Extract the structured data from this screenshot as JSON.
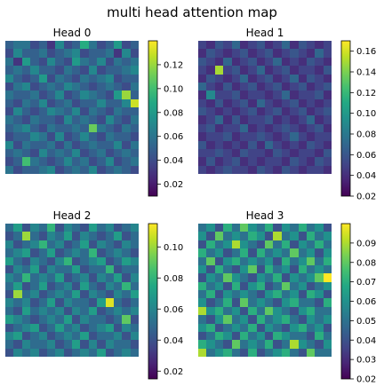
{
  "figure": {
    "title": "multi head attention map"
  },
  "chart_data": [
    {
      "type": "heatmap",
      "title": "Head 0",
      "rows": 16,
      "cols": 16,
      "colormap": "viridis",
      "color_range": [
        0.01,
        0.14
      ],
      "colorbar_ticks": [
        0.02,
        0.04,
        0.06,
        0.08,
        0.1,
        0.12
      ],
      "colorbar_tick_labels": [
        "0.02",
        "0.04",
        "0.06",
        "0.08",
        "0.10",
        "0.12"
      ],
      "values": [
        [
          0.05,
          0.06,
          0.06,
          0.04,
          0.05,
          0.03,
          0.07,
          0.04,
          0.05,
          0.09,
          0.06,
          0.04,
          0.05,
          0.08,
          0.04,
          0.05
        ],
        [
          0.04,
          0.07,
          0.05,
          0.05,
          0.06,
          0.04,
          0.05,
          0.06,
          0.07,
          0.04,
          0.05,
          0.05,
          0.06,
          0.03,
          0.07,
          0.04
        ],
        [
          0.06,
          0.03,
          0.08,
          0.05,
          0.04,
          0.07,
          0.05,
          0.04,
          0.08,
          0.06,
          0.05,
          0.07,
          0.04,
          0.06,
          0.05,
          0.06
        ],
        [
          0.05,
          0.06,
          0.05,
          0.07,
          0.05,
          0.05,
          0.04,
          0.06,
          0.05,
          0.04,
          0.07,
          0.04,
          0.05,
          0.05,
          0.06,
          0.07
        ],
        [
          0.07,
          0.05,
          0.04,
          0.05,
          0.08,
          0.04,
          0.06,
          0.05,
          0.04,
          0.06,
          0.05,
          0.06,
          0.07,
          0.04,
          0.05,
          0.05
        ],
        [
          0.04,
          0.06,
          0.07,
          0.04,
          0.05,
          0.06,
          0.05,
          0.07,
          0.06,
          0.05,
          0.04,
          0.05,
          0.06,
          0.05,
          0.04,
          0.06
        ],
        [
          0.06,
          0.05,
          0.05,
          0.06,
          0.04,
          0.05,
          0.07,
          0.04,
          0.05,
          0.07,
          0.06,
          0.05,
          0.04,
          0.08,
          0.12,
          0.05
        ],
        [
          0.05,
          0.04,
          0.06,
          0.05,
          0.07,
          0.04,
          0.05,
          0.06,
          0.04,
          0.05,
          0.05,
          0.07,
          0.05,
          0.05,
          0.07,
          0.13
        ],
        [
          0.04,
          0.07,
          0.05,
          0.04,
          0.05,
          0.07,
          0.06,
          0.05,
          0.07,
          0.04,
          0.06,
          0.05,
          0.04,
          0.06,
          0.05,
          0.05
        ],
        [
          0.06,
          0.05,
          0.04,
          0.06,
          0.05,
          0.05,
          0.04,
          0.07,
          0.05,
          0.06,
          0.05,
          0.04,
          0.07,
          0.05,
          0.04,
          0.06
        ],
        [
          0.05,
          0.06,
          0.07,
          0.05,
          0.04,
          0.06,
          0.05,
          0.05,
          0.06,
          0.05,
          0.11,
          0.06,
          0.05,
          0.04,
          0.06,
          0.05
        ],
        [
          0.04,
          0.05,
          0.05,
          0.07,
          0.06,
          0.04,
          0.07,
          0.04,
          0.05,
          0.07,
          0.05,
          0.04,
          0.06,
          0.05,
          0.05,
          0.04
        ],
        [
          0.07,
          0.04,
          0.06,
          0.05,
          0.05,
          0.06,
          0.04,
          0.06,
          0.04,
          0.05,
          0.06,
          0.05,
          0.05,
          0.07,
          0.04,
          0.06
        ],
        [
          0.05,
          0.06,
          0.05,
          0.04,
          0.07,
          0.05,
          0.06,
          0.05,
          0.07,
          0.04,
          0.05,
          0.06,
          0.04,
          0.05,
          0.06,
          0.05
        ],
        [
          0.04,
          0.05,
          0.1,
          0.06,
          0.05,
          0.04,
          0.05,
          0.07,
          0.05,
          0.06,
          0.04,
          0.05,
          0.07,
          0.04,
          0.05,
          0.06
        ],
        [
          0.06,
          0.04,
          0.05,
          0.05,
          0.06,
          0.07,
          0.04,
          0.05,
          0.06,
          0.05,
          0.07,
          0.04,
          0.05,
          0.06,
          0.05,
          0.04
        ]
      ]
    },
    {
      "type": "heatmap",
      "title": "Head 1",
      "rows": 16,
      "cols": 16,
      "colormap": "viridis",
      "color_range": [
        0.02,
        0.17
      ],
      "colorbar_ticks": [
        0.02,
        0.04,
        0.06,
        0.08,
        0.1,
        0.12,
        0.14,
        0.16
      ],
      "colorbar_tick_labels": [
        "0.02",
        "0.04",
        "0.06",
        "0.08",
        "0.10",
        "0.12",
        "0.14",
        "0.16"
      ],
      "values": [
        [
          0.05,
          0.04,
          0.06,
          0.05,
          0.07,
          0.04,
          0.05,
          0.06,
          0.04,
          0.05,
          0.07,
          0.04,
          0.06,
          0.05,
          0.04,
          0.05
        ],
        [
          0.04,
          0.06,
          0.05,
          0.04,
          0.05,
          0.06,
          0.04,
          0.05,
          0.06,
          0.04,
          0.05,
          0.06,
          0.05,
          0.04,
          0.07,
          0.05
        ],
        [
          0.06,
          0.05,
          0.04,
          0.07,
          0.04,
          0.05,
          0.06,
          0.04,
          0.05,
          0.07,
          0.04,
          0.05,
          0.04,
          0.06,
          0.05,
          0.04
        ],
        [
          0.05,
          0.04,
          0.15,
          0.05,
          0.06,
          0.04,
          0.05,
          0.07,
          0.04,
          0.05,
          0.06,
          0.04,
          0.05,
          0.05,
          0.04,
          0.06
        ],
        [
          0.04,
          0.06,
          0.05,
          0.04,
          0.05,
          0.07,
          0.04,
          0.05,
          0.06,
          0.04,
          0.05,
          0.07,
          0.04,
          0.06,
          0.05,
          0.04
        ],
        [
          0.07,
          0.05,
          0.04,
          0.06,
          0.04,
          0.05,
          0.06,
          0.04,
          0.05,
          0.06,
          0.04,
          0.05,
          0.06,
          0.04,
          0.05,
          0.06
        ],
        [
          0.04,
          0.09,
          0.05,
          0.05,
          0.06,
          0.04,
          0.05,
          0.05,
          0.04,
          0.05,
          0.07,
          0.04,
          0.05,
          0.05,
          0.06,
          0.04
        ],
        [
          0.05,
          0.04,
          0.06,
          0.04,
          0.05,
          0.06,
          0.04,
          0.07,
          0.05,
          0.04,
          0.05,
          0.06,
          0.04,
          0.05,
          0.04,
          0.05
        ],
        [
          0.06,
          0.05,
          0.04,
          0.05,
          0.04,
          0.05,
          0.06,
          0.04,
          0.05,
          0.06,
          0.04,
          0.05,
          0.06,
          0.04,
          0.05,
          0.06
        ],
        [
          0.04,
          0.05,
          0.07,
          0.04,
          0.06,
          0.04,
          0.05,
          0.05,
          0.06,
          0.04,
          0.05,
          0.04,
          0.05,
          0.07,
          0.04,
          0.05
        ],
        [
          0.05,
          0.06,
          0.04,
          0.05,
          0.05,
          0.07,
          0.04,
          0.05,
          0.04,
          0.05,
          0.06,
          0.05,
          0.04,
          0.05,
          0.06,
          0.04
        ],
        [
          0.04,
          0.05,
          0.05,
          0.06,
          0.04,
          0.05,
          0.05,
          0.06,
          0.05,
          0.04,
          0.05,
          0.07,
          0.05,
          0.04,
          0.05,
          0.05
        ],
        [
          0.06,
          0.04,
          0.05,
          0.04,
          0.05,
          0.04,
          0.06,
          0.04,
          0.07,
          0.05,
          0.04,
          0.05,
          0.04,
          0.06,
          0.05,
          0.04
        ],
        [
          0.05,
          0.05,
          0.06,
          0.05,
          0.04,
          0.06,
          0.05,
          0.05,
          0.04,
          0.06,
          0.05,
          0.04,
          0.05,
          0.05,
          0.04,
          0.06
        ],
        [
          0.04,
          0.06,
          0.04,
          0.05,
          0.06,
          0.04,
          0.05,
          0.04,
          0.05,
          0.05,
          0.04,
          0.06,
          0.05,
          0.04,
          0.06,
          0.05
        ],
        [
          0.05,
          0.04,
          0.05,
          0.06,
          0.05,
          0.05,
          0.04,
          0.06,
          0.05,
          0.04,
          0.06,
          0.05,
          0.04,
          0.05,
          0.05,
          0.04
        ]
      ]
    },
    {
      "type": "heatmap",
      "title": "Head 2",
      "rows": 16,
      "cols": 16,
      "colormap": "viridis",
      "color_range": [
        0.015,
        0.115
      ],
      "colorbar_ticks": [
        0.02,
        0.04,
        0.06,
        0.08,
        0.1
      ],
      "colorbar_tick_labels": [
        "0.02",
        "0.04",
        "0.06",
        "0.08",
        "0.10"
      ],
      "values": [
        [
          0.05,
          0.07,
          0.04,
          0.06,
          0.05,
          0.08,
          0.04,
          0.06,
          0.05,
          0.04,
          0.07,
          0.05,
          0.06,
          0.04,
          0.05,
          0.06
        ],
        [
          0.04,
          0.05,
          0.1,
          0.05,
          0.04,
          0.06,
          0.05,
          0.07,
          0.04,
          0.06,
          0.05,
          0.04,
          0.05,
          0.07,
          0.04,
          0.05
        ],
        [
          0.06,
          0.04,
          0.05,
          0.06,
          0.08,
          0.05,
          0.06,
          0.04,
          0.05,
          0.07,
          0.04,
          0.06,
          0.05,
          0.04,
          0.06,
          0.05
        ],
        [
          0.05,
          0.06,
          0.07,
          0.04,
          0.05,
          0.07,
          0.04,
          0.05,
          0.06,
          0.05,
          0.08,
          0.04,
          0.05,
          0.06,
          0.05,
          0.04
        ],
        [
          0.07,
          0.05,
          0.04,
          0.06,
          0.05,
          0.04,
          0.06,
          0.08,
          0.04,
          0.05,
          0.06,
          0.07,
          0.04,
          0.05,
          0.07,
          0.06
        ],
        [
          0.04,
          0.06,
          0.05,
          0.07,
          0.04,
          0.06,
          0.05,
          0.05,
          0.07,
          0.04,
          0.05,
          0.05,
          0.08,
          0.04,
          0.05,
          0.05
        ],
        [
          0.06,
          0.05,
          0.08,
          0.05,
          0.06,
          0.05,
          0.07,
          0.04,
          0.05,
          0.06,
          0.04,
          0.06,
          0.05,
          0.07,
          0.04,
          0.06
        ],
        [
          0.05,
          0.07,
          0.04,
          0.05,
          0.07,
          0.04,
          0.05,
          0.06,
          0.04,
          0.07,
          0.05,
          0.04,
          0.06,
          0.05,
          0.08,
          0.05
        ],
        [
          0.04,
          0.1,
          0.05,
          0.06,
          0.04,
          0.05,
          0.06,
          0.05,
          0.07,
          0.04,
          0.06,
          0.05,
          0.04,
          0.06,
          0.05,
          0.07
        ],
        [
          0.06,
          0.05,
          0.06,
          0.04,
          0.05,
          0.07,
          0.04,
          0.06,
          0.05,
          0.05,
          0.04,
          0.07,
          0.11,
          0.05,
          0.04,
          0.05
        ],
        [
          0.05,
          0.04,
          0.07,
          0.05,
          0.06,
          0.05,
          0.06,
          0.04,
          0.06,
          0.05,
          0.07,
          0.04,
          0.05,
          0.06,
          0.05,
          0.06
        ],
        [
          0.07,
          0.06,
          0.05,
          0.04,
          0.05,
          0.06,
          0.05,
          0.07,
          0.04,
          0.06,
          0.05,
          0.05,
          0.04,
          0.05,
          0.09,
          0.04
        ],
        [
          0.04,
          0.05,
          0.06,
          0.07,
          0.04,
          0.05,
          0.07,
          0.05,
          0.06,
          0.04,
          0.05,
          0.06,
          0.07,
          0.04,
          0.06,
          0.05
        ],
        [
          0.06,
          0.07,
          0.04,
          0.05,
          0.06,
          0.04,
          0.05,
          0.06,
          0.05,
          0.07,
          0.04,
          0.05,
          0.05,
          0.06,
          0.04,
          0.06
        ],
        [
          0.05,
          0.04,
          0.06,
          0.05,
          0.05,
          0.06,
          0.04,
          0.05,
          0.07,
          0.04,
          0.06,
          0.04,
          0.06,
          0.05,
          0.05,
          0.04
        ],
        [
          0.04,
          0.06,
          0.05,
          0.06,
          0.04,
          0.05,
          0.06,
          0.04,
          0.05,
          0.06,
          0.05,
          0.07,
          0.04,
          0.05,
          0.06,
          0.05
        ]
      ]
    },
    {
      "type": "heatmap",
      "title": "Head 3",
      "rows": 16,
      "cols": 16,
      "colormap": "viridis",
      "color_range": [
        0.02,
        0.1
      ],
      "colorbar_ticks": [
        0.02,
        0.03,
        0.04,
        0.05,
        0.06,
        0.07,
        0.08,
        0.09
      ],
      "colorbar_tick_labels": [
        "0.02",
        "0.03",
        "0.04",
        "0.05",
        "0.06",
        "0.07",
        "0.08",
        "0.09"
      ],
      "values": [
        [
          0.05,
          0.06,
          0.04,
          0.07,
          0.05,
          0.08,
          0.06,
          0.05,
          0.07,
          0.04,
          0.06,
          0.05,
          0.07,
          0.05,
          0.06,
          0.04
        ],
        [
          0.06,
          0.04,
          0.08,
          0.05,
          0.06,
          0.05,
          0.07,
          0.06,
          0.04,
          0.09,
          0.05,
          0.06,
          0.04,
          0.07,
          0.05,
          0.06
        ],
        [
          0.04,
          0.07,
          0.05,
          0.06,
          0.09,
          0.06,
          0.05,
          0.04,
          0.08,
          0.05,
          0.07,
          0.04,
          0.06,
          0.05,
          0.07,
          0.05
        ],
        [
          0.07,
          0.05,
          0.06,
          0.04,
          0.05,
          0.07,
          0.04,
          0.07,
          0.05,
          0.06,
          0.05,
          0.08,
          0.05,
          0.06,
          0.04,
          0.06
        ],
        [
          0.05,
          0.08,
          0.04,
          0.06,
          0.07,
          0.05,
          0.06,
          0.05,
          0.06,
          0.04,
          0.07,
          0.05,
          0.06,
          0.08,
          0.05,
          0.07
        ],
        [
          0.06,
          0.04,
          0.07,
          0.05,
          0.04,
          0.06,
          0.08,
          0.04,
          0.07,
          0.05,
          0.06,
          0.04,
          0.07,
          0.05,
          0.06,
          0.05
        ],
        [
          0.04,
          0.06,
          0.05,
          0.08,
          0.06,
          0.05,
          0.04,
          0.06,
          0.05,
          0.07,
          0.04,
          0.06,
          0.05,
          0.06,
          0.08,
          0.1
        ],
        [
          0.07,
          0.05,
          0.06,
          0.04,
          0.07,
          0.04,
          0.06,
          0.07,
          0.04,
          0.05,
          0.08,
          0.05,
          0.06,
          0.04,
          0.05,
          0.06
        ],
        [
          0.05,
          0.07,
          0.04,
          0.06,
          0.05,
          0.06,
          0.05,
          0.04,
          0.06,
          0.07,
          0.05,
          0.06,
          0.04,
          0.07,
          0.06,
          0.04
        ],
        [
          0.06,
          0.04,
          0.05,
          0.07,
          0.04,
          0.08,
          0.05,
          0.06,
          0.05,
          0.04,
          0.06,
          0.07,
          0.05,
          0.05,
          0.04,
          0.07
        ],
        [
          0.09,
          0.06,
          0.07,
          0.05,
          0.06,
          0.04,
          0.07,
          0.05,
          0.08,
          0.06,
          0.05,
          0.04,
          0.06,
          0.07,
          0.05,
          0.05
        ],
        [
          0.05,
          0.04,
          0.06,
          0.08,
          0.05,
          0.06,
          0.04,
          0.07,
          0.05,
          0.06,
          0.07,
          0.05,
          0.04,
          0.06,
          0.05,
          0.06
        ],
        [
          0.06,
          0.07,
          0.04,
          0.05,
          0.06,
          0.05,
          0.07,
          0.04,
          0.06,
          0.05,
          0.04,
          0.06,
          0.07,
          0.05,
          0.06,
          0.04
        ],
        [
          0.04,
          0.05,
          0.07,
          0.06,
          0.04,
          0.07,
          0.05,
          0.06,
          0.04,
          0.07,
          0.06,
          0.05,
          0.05,
          0.04,
          0.07,
          0.05
        ],
        [
          0.07,
          0.06,
          0.05,
          0.04,
          0.08,
          0.05,
          0.06,
          0.05,
          0.07,
          0.04,
          0.05,
          0.09,
          0.06,
          0.05,
          0.04,
          0.06
        ],
        [
          0.09,
          0.05,
          0.06,
          0.07,
          0.05,
          0.04,
          0.07,
          0.04,
          0.05,
          0.06,
          0.07,
          0.05,
          0.04,
          0.08,
          0.05,
          0.05
        ]
      ]
    }
  ]
}
